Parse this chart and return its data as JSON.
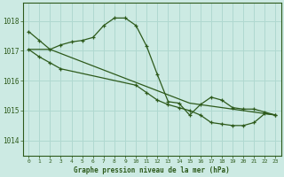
{
  "bg_color": "#cceae3",
  "grid_color": "#b0d8d0",
  "line_color": "#2d5a1b",
  "title": "Graphe pression niveau de la mer (hPa)",
  "xlim": [
    -0.5,
    23.5
  ],
  "ylim": [
    1013.5,
    1018.6
  ],
  "yticks": [
    1014,
    1015,
    1016,
    1017,
    1018
  ],
  "xticks": [
    0,
    1,
    2,
    3,
    4,
    5,
    6,
    7,
    8,
    9,
    10,
    11,
    12,
    13,
    14,
    15,
    16,
    17,
    18,
    19,
    20,
    21,
    22,
    23
  ],
  "series1_x": [
    0,
    1,
    2,
    3,
    4,
    5,
    6,
    7,
    8,
    9,
    10,
    11,
    12,
    13,
    14,
    15,
    16,
    17,
    18,
    19,
    20,
    21,
    22,
    23
  ],
  "series1_y": [
    1017.65,
    1017.35,
    1017.05,
    1017.2,
    1017.3,
    1017.35,
    1017.45,
    1017.85,
    1018.1,
    1018.1,
    1017.85,
    1017.15,
    1016.2,
    1015.3,
    1015.25,
    1014.85,
    1015.2,
    1015.45,
    1015.35,
    1015.1,
    1015.05,
    1015.05,
    1014.95,
    1014.85
  ],
  "series2_x": [
    0,
    2,
    15,
    23
  ],
  "series2_y": [
    1017.05,
    1017.05,
    1015.25,
    1014.85
  ],
  "series3_x": [
    0,
    1,
    2,
    3,
    10,
    11,
    12,
    13,
    14,
    15,
    16,
    17,
    18,
    19,
    20,
    21,
    22,
    23
  ],
  "series3_y": [
    1017.05,
    1016.8,
    1016.6,
    1016.4,
    1015.85,
    1015.6,
    1015.35,
    1015.2,
    1015.1,
    1015.0,
    1014.85,
    1014.6,
    1014.55,
    1014.5,
    1014.5,
    1014.6,
    1014.9,
    1014.85
  ]
}
